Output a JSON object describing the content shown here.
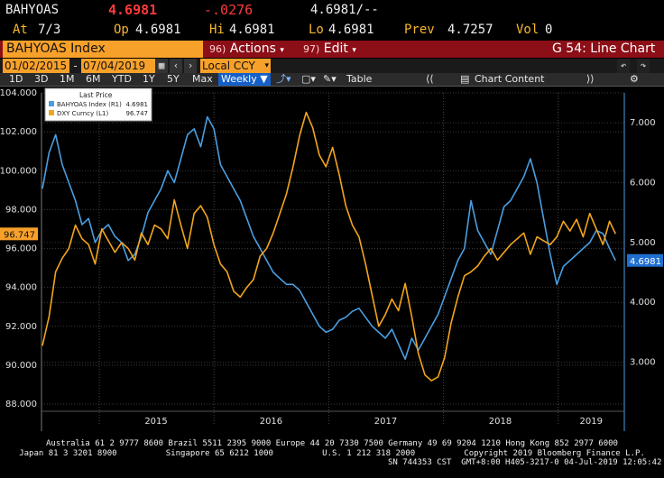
{
  "header": {
    "ticker": "BAHYOAS",
    "last": "4.6981",
    "change": "-.0276",
    "last2": "4.6981/--",
    "at_label": "At",
    "at_value": "7/3",
    "op_label": "Op",
    "op_value": "4.6981",
    "hi_label": "Hi",
    "hi_value": "4.6981",
    "lo_label": "Lo",
    "lo_value": "4.6981",
    "prev_label": "Prev",
    "prev_value": "4.7257",
    "vol_label": "Vol",
    "vol_value": "0"
  },
  "bar": {
    "security": "BAHYOAS Index",
    "actions_num": "96)",
    "actions_label": "Actions",
    "edit_num": "97)",
    "edit_label": "Edit",
    "function": "G 54: Line Chart"
  },
  "range": {
    "start": "01/02/2015",
    "end": "07/04/2019",
    "currency": "Local CCY"
  },
  "toolbar": {
    "periods": [
      "1D",
      "3D",
      "1M",
      "6M",
      "YTD",
      "1Y",
      "5Y",
      "Max"
    ],
    "frequency": "Weekly",
    "table": "Table",
    "chart_content": "Chart Content"
  },
  "colors": {
    "blue": "#4a9ee0",
    "orange": "#f2a51c",
    "amber": "#f8a12a",
    "red_bar": "#8c0e17"
  },
  "chart_data": {
    "type": "line",
    "legend": {
      "title": "Last Price",
      "items": [
        {
          "label": "BAHYOAS Index (R1)",
          "value": "4.6981"
        },
        {
          "label": "DXY Curncy (L1)",
          "value": "96.747"
        }
      ]
    },
    "x_ticks": [
      "2015",
      "2016",
      "2017",
      "2018",
      "2019"
    ],
    "x_range": [
      "2014-07-01",
      "2019-07-31"
    ],
    "y_left": {
      "ticks": [
        "104.000",
        "102.000",
        "100.000",
        "98.000",
        "96.000",
        "94.000",
        "92.000",
        "90.000",
        "88.000"
      ],
      "range": [
        88,
        104
      ]
    },
    "y_right": {
      "ticks": [
        "7.000",
        "6.000",
        "5.000",
        "4.000",
        "3.000"
      ],
      "range": [
        2.3,
        7.5
      ]
    },
    "last_labels": {
      "left": "96.747",
      "right": "4.6981"
    },
    "series": [
      {
        "name": "BAHYOAS Index (R1)",
        "axis": "right",
        "points": [
          [
            "2014-07-04",
            5.9
          ],
          [
            "2014-07-25",
            6.5
          ],
          [
            "2014-08-15",
            6.8
          ],
          [
            "2014-09-05",
            6.3
          ],
          [
            "2014-09-26",
            6.0
          ],
          [
            "2014-10-17",
            5.7
          ],
          [
            "2014-11-07",
            5.3
          ],
          [
            "2014-11-28",
            5.4
          ],
          [
            "2014-12-19",
            5.0
          ],
          [
            "2015-01-09",
            5.2
          ],
          [
            "2015-01-30",
            5.3
          ],
          [
            "2015-02-20",
            5.1
          ],
          [
            "2015-03-13",
            5.0
          ],
          [
            "2015-04-03",
            4.7
          ],
          [
            "2015-04-24",
            4.8
          ],
          [
            "2015-05-15",
            5.1
          ],
          [
            "2015-06-05",
            5.5
          ],
          [
            "2015-06-26",
            5.7
          ],
          [
            "2015-07-17",
            5.9
          ],
          [
            "2015-08-07",
            6.2
          ],
          [
            "2015-08-28",
            6.0
          ],
          [
            "2015-09-18",
            6.4
          ],
          [
            "2015-10-09",
            6.8
          ],
          [
            "2015-10-30",
            6.9
          ],
          [
            "2015-11-20",
            6.6
          ],
          [
            "2015-12-11",
            7.1
          ],
          [
            "2016-01-01",
            6.9
          ],
          [
            "2016-01-22",
            6.3
          ],
          [
            "2016-02-12",
            6.1
          ],
          [
            "2016-03-04",
            5.9
          ],
          [
            "2016-03-25",
            5.7
          ],
          [
            "2016-04-15",
            5.4
          ],
          [
            "2016-05-06",
            5.1
          ],
          [
            "2016-05-27",
            4.9
          ],
          [
            "2016-06-17",
            4.7
          ],
          [
            "2016-07-08",
            4.5
          ],
          [
            "2016-07-29",
            4.4
          ],
          [
            "2016-08-19",
            4.3
          ],
          [
            "2016-09-09",
            4.3
          ],
          [
            "2016-09-30",
            4.2
          ],
          [
            "2016-10-21",
            4.0
          ],
          [
            "2016-11-11",
            3.8
          ],
          [
            "2016-12-02",
            3.6
          ],
          [
            "2016-12-23",
            3.5
          ],
          [
            "2017-01-13",
            3.55
          ],
          [
            "2017-02-03",
            3.7
          ],
          [
            "2017-02-24",
            3.75
          ],
          [
            "2017-03-17",
            3.85
          ],
          [
            "2017-04-07",
            3.9
          ],
          [
            "2017-04-28",
            3.75
          ],
          [
            "2017-05-19",
            3.6
          ],
          [
            "2017-06-09",
            3.5
          ],
          [
            "2017-06-30",
            3.4
          ],
          [
            "2017-07-21",
            3.55
          ],
          [
            "2017-08-11",
            3.3
          ],
          [
            "2017-09-01",
            3.05
          ],
          [
            "2017-09-22",
            3.4
          ],
          [
            "2017-10-13",
            3.2
          ],
          [
            "2017-11-03",
            3.4
          ],
          [
            "2017-11-24",
            3.6
          ],
          [
            "2017-12-15",
            3.8
          ],
          [
            "2018-01-05",
            4.1
          ],
          [
            "2018-01-26",
            4.4
          ],
          [
            "2018-02-16",
            4.7
          ],
          [
            "2018-03-09",
            4.9
          ],
          [
            "2018-03-30",
            5.7
          ],
          [
            "2018-04-20",
            5.2
          ],
          [
            "2018-05-11",
            5.0
          ],
          [
            "2018-06-01",
            4.8
          ],
          [
            "2018-06-22",
            5.2
          ],
          [
            "2018-07-13",
            5.6
          ],
          [
            "2018-08-03",
            5.7
          ],
          [
            "2018-08-24",
            5.9
          ],
          [
            "2018-09-14",
            6.1
          ],
          [
            "2018-10-05",
            6.4
          ],
          [
            "2018-10-26",
            6.0
          ],
          [
            "2018-11-16",
            5.4
          ],
          [
            "2018-12-07",
            4.8
          ],
          [
            "2018-12-28",
            4.3
          ],
          [
            "2019-01-18",
            4.6
          ],
          [
            "2019-02-08",
            4.7
          ],
          [
            "2019-03-01",
            4.8
          ],
          [
            "2019-03-22",
            4.9
          ],
          [
            "2019-04-12",
            5.0
          ],
          [
            "2019-05-03",
            5.2
          ],
          [
            "2019-05-24",
            5.15
          ],
          [
            "2019-06-14",
            4.9
          ],
          [
            "2019-07-03",
            4.7
          ]
        ]
      },
      {
        "name": "DXY Curncy (L1)",
        "axis": "left",
        "points": [
          [
            "2014-07-04",
            91.0
          ],
          [
            "2014-07-25",
            92.5
          ],
          [
            "2014-08-15",
            94.8
          ],
          [
            "2014-09-05",
            95.5
          ],
          [
            "2014-09-26",
            96.0
          ],
          [
            "2014-10-17",
            97.2
          ],
          [
            "2014-11-07",
            96.5
          ],
          [
            "2014-11-28",
            96.2
          ],
          [
            "2014-12-19",
            95.2
          ],
          [
            "2015-01-09",
            97.0
          ],
          [
            "2015-01-30",
            96.4
          ],
          [
            "2015-02-20",
            95.8
          ],
          [
            "2015-03-13",
            96.3
          ],
          [
            "2015-04-03",
            96.0
          ],
          [
            "2015-04-24",
            95.4
          ],
          [
            "2015-05-15",
            96.8
          ],
          [
            "2015-06-05",
            96.2
          ],
          [
            "2015-06-26",
            97.2
          ],
          [
            "2015-07-17",
            97.0
          ],
          [
            "2015-08-07",
            96.5
          ],
          [
            "2015-08-28",
            98.5
          ],
          [
            "2015-09-18",
            97.2
          ],
          [
            "2015-10-09",
            96.0
          ],
          [
            "2015-10-30",
            97.8
          ],
          [
            "2015-11-20",
            98.2
          ],
          [
            "2015-12-11",
            97.6
          ],
          [
            "2016-01-01",
            96.2
          ],
          [
            "2016-01-22",
            95.2
          ],
          [
            "2016-02-12",
            94.8
          ],
          [
            "2016-03-04",
            93.8
          ],
          [
            "2016-03-25",
            93.5
          ],
          [
            "2016-04-15",
            94.0
          ],
          [
            "2016-05-06",
            94.4
          ],
          [
            "2016-05-27",
            95.6
          ],
          [
            "2016-06-17",
            96.0
          ],
          [
            "2016-07-08",
            96.8
          ],
          [
            "2016-07-29",
            97.8
          ],
          [
            "2016-08-19",
            98.8
          ],
          [
            "2016-09-09",
            100.2
          ],
          [
            "2016-09-30",
            101.8
          ],
          [
            "2016-10-21",
            103.0
          ],
          [
            "2016-11-11",
            102.2
          ],
          [
            "2016-12-02",
            100.8
          ],
          [
            "2016-12-23",
            100.2
          ],
          [
            "2017-01-13",
            101.2
          ],
          [
            "2017-02-03",
            99.8
          ],
          [
            "2017-02-24",
            98.2
          ],
          [
            "2017-03-17",
            97.2
          ],
          [
            "2017-04-07",
            96.6
          ],
          [
            "2017-04-28",
            95.2
          ],
          [
            "2017-05-19",
            93.6
          ],
          [
            "2017-06-09",
            92.0
          ],
          [
            "2017-06-30",
            92.6
          ],
          [
            "2017-07-21",
            93.4
          ],
          [
            "2017-08-11",
            92.8
          ],
          [
            "2017-09-01",
            94.2
          ],
          [
            "2017-09-22",
            92.5
          ],
          [
            "2017-10-13",
            90.6
          ],
          [
            "2017-11-03",
            89.5
          ],
          [
            "2017-11-24",
            89.2
          ],
          [
            "2017-12-15",
            89.4
          ],
          [
            "2018-01-05",
            90.4
          ],
          [
            "2018-01-26",
            92.2
          ],
          [
            "2018-02-16",
            93.5
          ],
          [
            "2018-03-09",
            94.6
          ],
          [
            "2018-03-30",
            94.8
          ],
          [
            "2018-04-20",
            95.1
          ],
          [
            "2018-05-11",
            95.6
          ],
          [
            "2018-06-01",
            96.0
          ],
          [
            "2018-06-22",
            95.4
          ],
          [
            "2018-07-13",
            95.8
          ],
          [
            "2018-08-03",
            96.2
          ],
          [
            "2018-08-24",
            96.5
          ],
          [
            "2018-09-14",
            96.8
          ],
          [
            "2018-10-05",
            95.7
          ],
          [
            "2018-10-26",
            96.6
          ],
          [
            "2018-11-16",
            96.4
          ],
          [
            "2018-12-07",
            96.2
          ],
          [
            "2018-12-28",
            96.6
          ],
          [
            "2019-01-18",
            97.4
          ],
          [
            "2019-02-08",
            96.9
          ],
          [
            "2019-03-01",
            97.5
          ],
          [
            "2019-03-22",
            96.6
          ],
          [
            "2019-04-12",
            97.8
          ],
          [
            "2019-05-03",
            97.0
          ],
          [
            "2019-05-24",
            96.2
          ],
          [
            "2019-06-14",
            97.4
          ],
          [
            "2019-07-03",
            96.75
          ]
        ]
      }
    ]
  },
  "footer": {
    "line1": "Australia 61 2 9777 8600 Brazil 5511 2395 9000 Europe 44 20 7330 7500 Germany 49 69 9204 1210 Hong Kong 852 2977 6000",
    "line2": "Japan 81 3 3201 8900          Singapore 65 6212 1000          U.S. 1 212 318 2000          Copyright 2019 Bloomberg Finance L.P.",
    "line3": "SN 744353 CST  GMT+8:00 H405-3217-0 04-Jul-2019 12:05:42"
  }
}
